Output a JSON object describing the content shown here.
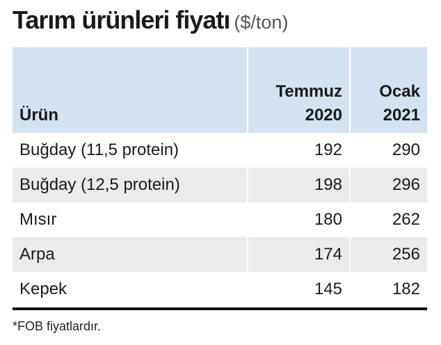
{
  "header": {
    "title": "Tarım ürünleri fiyatı",
    "unit": "($/ton)"
  },
  "table": {
    "columns": [
      [
        "Ürün"
      ],
      [
        "Temmuz",
        "2020"
      ],
      [
        "Ocak",
        "2021"
      ]
    ],
    "rows": [
      [
        "Buğday (11,5 protein)",
        192,
        290
      ],
      [
        "Buğday (12,5 protein)",
        198,
        296
      ],
      [
        "Mısır",
        180,
        262
      ],
      [
        "Arpa",
        174,
        256
      ],
      [
        "Kepek",
        145,
        182
      ]
    ]
  },
  "footnote": "*FOB fiyatlardır."
}
